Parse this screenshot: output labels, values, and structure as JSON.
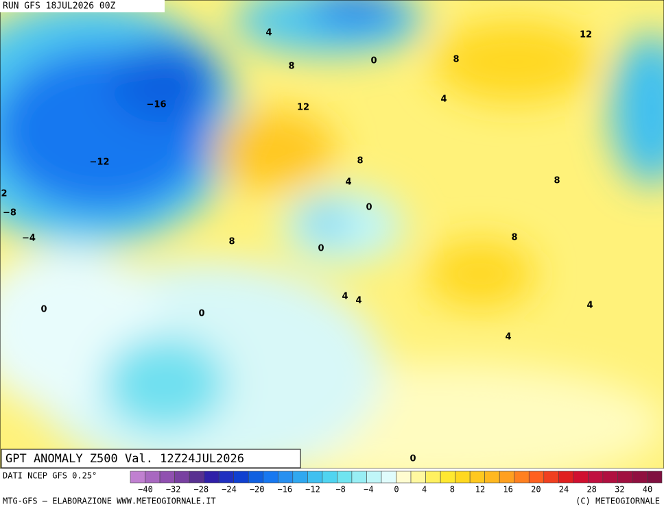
{
  "header": {
    "run": "RUN GFS 18JUL2026 00Z"
  },
  "map": {
    "title": "GPT ANOMALY Z500 Val. 12Z24JUL2026",
    "contour_labels": [
      "4",
      "0",
      "8",
      "8",
      "12",
      "−16",
      "12",
      "4",
      "−12",
      "8",
      "4",
      "8",
      "2",
      "0",
      "−8",
      "−4",
      "8",
      "0",
      "8",
      "4",
      "4",
      "4",
      "0",
      "0",
      "4",
      "0"
    ]
  },
  "legend": {
    "source": "DATI NCEP GFS 0.25°",
    "colors": [
      "#c080d0",
      "#a868c0",
      "#9050b0",
      "#7840a0",
      "#583090",
      "#3020a8",
      "#2030c0",
      "#1040d0",
      "#1060e0",
      "#1878f0",
      "#2890f0",
      "#30a8f0",
      "#40c0f0",
      "#50d4f0",
      "#70e4f0",
      "#98eef4",
      "#c0f6f8",
      "#e0fcfc",
      "#fffcd0",
      "#fff8a0",
      "#fff060",
      "#ffe830",
      "#ffd820",
      "#ffc820",
      "#ffb820",
      "#ffa020",
      "#ff8020",
      "#ff6020",
      "#f04020",
      "#e02020",
      "#d01030",
      "#c01040",
      "#b01040",
      "#a01040",
      "#901040",
      "#801040"
    ],
    "labels": [
      "−40",
      "−32",
      "−28",
      "−24",
      "−20",
      "−16",
      "−12",
      "−8",
      "−4",
      "0",
      "4",
      "8",
      "12",
      "16",
      "20",
      "24",
      "28",
      "32",
      "40"
    ]
  },
  "footer": {
    "left": "MTG-GFS — ELABORAZIONE WWW.METEOGIORNALE.IT",
    "right": "(C) METEOGIORNALE"
  }
}
